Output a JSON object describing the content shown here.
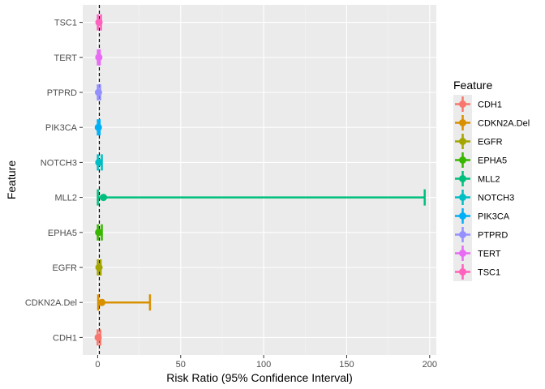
{
  "chart_data": {
    "type": "forest",
    "xlabel": "Risk Ratio (95% Confidence Interval)",
    "ylabel": "Feature",
    "xlim": [
      -9,
      204
    ],
    "x_ticks": [
      0,
      50,
      100,
      150,
      200
    ],
    "x_tick_labels": [
      "0",
      "50",
      "100",
      "150",
      "200"
    ],
    "x_minor_ticks": [
      25,
      75,
      125,
      175
    ],
    "reference_line": 1,
    "reference_line_style": "dashed",
    "grid": true,
    "legend_title": "Feature",
    "legend_position": "right",
    "series": [
      {
        "name": "CDH1",
        "estimate": 0.3,
        "lower": 0.0,
        "upper": 1.6,
        "color": "#F8766D"
      },
      {
        "name": "CDKN2A.Del",
        "estimate": 2.5,
        "lower": 0.3,
        "upper": 31.5,
        "color": "#D89000"
      },
      {
        "name": "EGFR",
        "estimate": 0.8,
        "lower": 0.1,
        "upper": 1.8,
        "color": "#A3A500"
      },
      {
        "name": "EPHA5",
        "estimate": 0.6,
        "lower": 0.1,
        "upper": 2.5,
        "color": "#39B600"
      },
      {
        "name": "MLL2",
        "estimate": 3.5,
        "lower": 0.1,
        "upper": 197.0,
        "color": "#00BF7D"
      },
      {
        "name": "NOTCH3",
        "estimate": 0.7,
        "lower": 0.1,
        "upper": 2.5,
        "color": "#00BFC4"
      },
      {
        "name": "PIK3CA",
        "estimate": 0.4,
        "lower": 0.1,
        "upper": 1.2,
        "color": "#00B0F6"
      },
      {
        "name": "PTPRD",
        "estimate": 0.5,
        "lower": 0.1,
        "upper": 1.5,
        "color": "#9590FF"
      },
      {
        "name": "TERT",
        "estimate": 0.7,
        "lower": 0.1,
        "upper": 1.3,
        "color": "#E76BF3"
      },
      {
        "name": "TSC1",
        "estimate": 0.8,
        "lower": 0.1,
        "upper": 2.0,
        "color": "#FF62BC"
      }
    ]
  },
  "colors": {
    "panel_background": "#EBEBEB",
    "grid_major": "#FFFFFF",
    "grid_minor": "#F5F5F5",
    "legend_key_background": "#EBEBEB"
  }
}
